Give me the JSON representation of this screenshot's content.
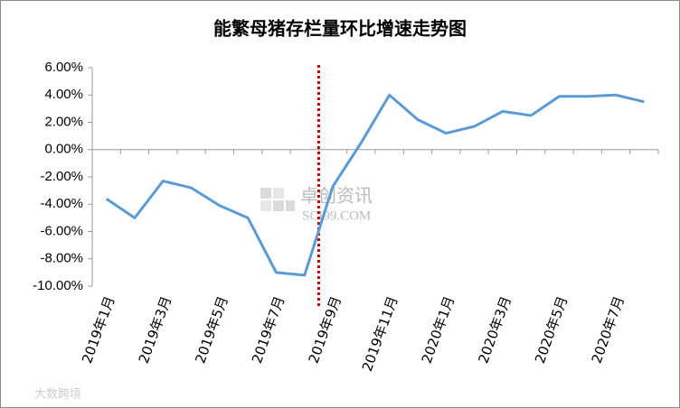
{
  "chart_data": {
    "type": "line",
    "title": "能繁母猪存栏量环比增速走势图",
    "categories": [
      "2019年1月",
      null,
      "2019年3月",
      null,
      "2019年5月",
      null,
      "2019年7月",
      null,
      "2019年9月",
      null,
      "2019年11月",
      null,
      "2020年1月",
      null,
      "2020年3月",
      null,
      "2020年5月",
      null,
      "2020年7月",
      null
    ],
    "series": [
      {
        "color": "#5b9bd5",
        "values": [
          -3.6,
          -5.0,
          -2.3,
          -2.8,
          -4.1,
          -5.0,
          -9.0,
          -9.2,
          -2.7,
          0.5,
          4.0,
          2.2,
          1.2,
          1.7,
          2.8,
          2.5,
          3.9,
          3.9,
          4.0,
          3.5
        ]
      }
    ],
    "ylim": [
      -10,
      6
    ],
    "yticks": [
      {
        "value": -10,
        "label": "-10.00%"
      },
      {
        "value": -8,
        "label": "-8.00%"
      },
      {
        "value": -6,
        "label": "-6.00%"
      },
      {
        "value": -4,
        "label": "-4.00%"
      },
      {
        "value": -2,
        "label": "-2.00%"
      },
      {
        "value": 0,
        "label": "0.00%"
      },
      {
        "value": 2,
        "label": "2.00%"
      },
      {
        "value": 4,
        "label": "4.00%"
      },
      {
        "value": 6,
        "label": "6.00%"
      }
    ],
    "grid": false,
    "watermark": [
      "卓创资讯",
      "SCI99.COM"
    ],
    "source_mark": "大数跨境"
  }
}
